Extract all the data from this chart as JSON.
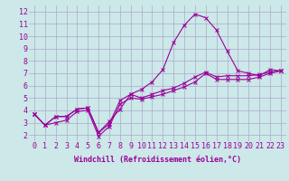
{
  "xlabel": "Windchill (Refroidissement éolien,°C)",
  "background_color": "#cce8e8",
  "grid_color": "#aaaacc",
  "line_color": "#990099",
  "xlim": [
    -0.5,
    23.5
  ],
  "ylim": [
    1.5,
    12.5
  ],
  "xticks": [
    0,
    1,
    2,
    3,
    4,
    5,
    6,
    7,
    8,
    9,
    10,
    11,
    12,
    13,
    14,
    15,
    16,
    17,
    18,
    19,
    20,
    21,
    22,
    23
  ],
  "yticks": [
    2,
    3,
    4,
    5,
    6,
    7,
    8,
    9,
    10,
    11,
    12
  ],
  "line1_x": [
    0,
    1,
    2,
    3,
    4,
    5,
    6,
    7,
    8,
    9,
    10,
    11,
    12,
    13,
    14,
    15,
    16,
    17,
    18,
    19,
    20,
    21,
    22,
    23
  ],
  "line1_y": [
    3.7,
    2.8,
    3.5,
    3.5,
    4.1,
    4.2,
    2.2,
    3.1,
    4.1,
    5.3,
    5.7,
    6.3,
    7.3,
    9.5,
    10.9,
    11.8,
    11.5,
    10.5,
    8.8,
    7.2,
    7.0,
    6.8,
    7.3,
    7.2
  ],
  "line2_x": [
    0,
    1,
    2,
    3,
    4,
    5,
    6,
    7,
    8,
    9,
    10,
    11,
    12,
    13,
    14,
    15,
    16,
    17,
    18,
    19,
    20,
    21,
    22,
    23
  ],
  "line2_y": [
    3.7,
    2.8,
    3.5,
    3.5,
    4.1,
    4.2,
    2.2,
    2.9,
    4.8,
    5.3,
    5.0,
    5.3,
    5.6,
    5.8,
    6.2,
    6.7,
    7.1,
    6.7,
    6.8,
    6.8,
    6.8,
    6.9,
    7.1,
    7.2
  ],
  "line3_x": [
    0,
    1,
    2,
    3,
    4,
    5,
    6,
    7,
    8,
    9,
    10,
    11,
    12,
    13,
    14,
    15,
    16,
    17,
    18,
    19,
    20,
    21,
    22,
    23
  ],
  "line3_y": [
    3.7,
    2.8,
    3.0,
    3.2,
    3.9,
    4.0,
    1.9,
    2.7,
    4.5,
    5.0,
    4.9,
    5.1,
    5.3,
    5.6,
    5.9,
    6.3,
    7.0,
    6.5,
    6.5,
    6.5,
    6.5,
    6.7,
    7.0,
    7.2
  ],
  "xlabel_fontsize": 6,
  "tick_fontsize": 6
}
